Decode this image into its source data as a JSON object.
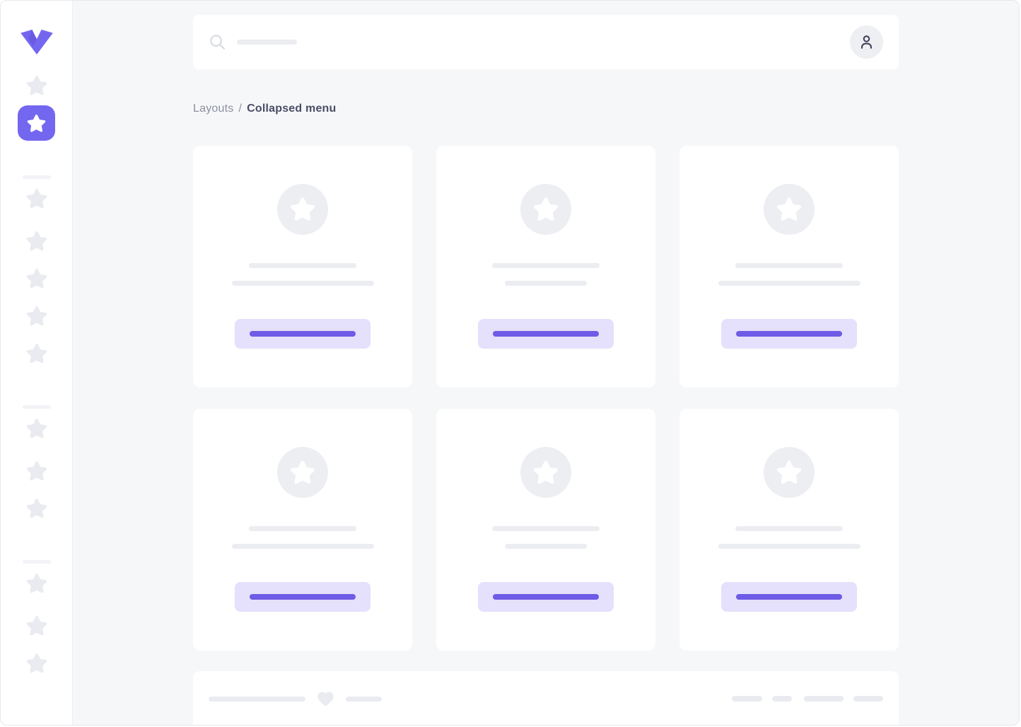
{
  "breadcrumb": {
    "parent": "Layouts",
    "separator": "/",
    "current": "Collapsed menu"
  },
  "topbar": {
    "search_icon": "search-icon",
    "search_placeholder": "",
    "avatar_icon": "user-icon"
  },
  "sidebar": {
    "logo_icon": "brand-v-logo",
    "top_items": [
      {
        "icon": "star-icon",
        "active": false
      },
      {
        "icon": "star-icon",
        "active": true
      }
    ],
    "groups": [
      {
        "divider": true,
        "items": 5
      },
      {
        "divider": true,
        "items": 3
      },
      {
        "divider": true,
        "items": 3
      }
    ]
  },
  "cards": [
    {
      "icon": "star-icon",
      "subtitle_width": "long"
    },
    {
      "icon": "star-icon",
      "subtitle_width": "short"
    },
    {
      "icon": "star-icon",
      "subtitle_width": "long"
    },
    {
      "icon": "star-icon",
      "subtitle_width": "long"
    },
    {
      "icon": "star-icon",
      "subtitle_width": "short"
    },
    {
      "icon": "star-icon",
      "subtitle_width": "long"
    }
  ],
  "footer": {
    "heart_icon": "heart-icon",
    "left_lines": 2,
    "pills": [
      43,
      28,
      56,
      42
    ]
  },
  "colors": {
    "accent": "#7367f0",
    "accent_deep": "#6e5be6",
    "accent_soft": "#e5e0fb",
    "bg_page": "#f6f7f9",
    "placeholder": "#ebedf1",
    "placeholder_soft": "#e9ebf0",
    "circle_bg": "#eceef2",
    "text_muted": "#8d90a0",
    "text_dark": "#4b4c66"
  }
}
